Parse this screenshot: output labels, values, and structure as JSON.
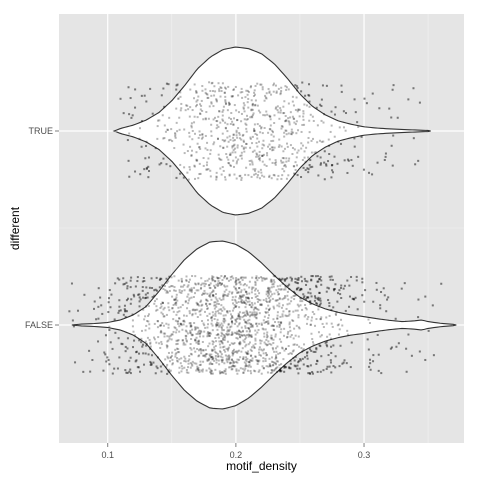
{
  "chart_data": {
    "type": "violin",
    "xlabel": "motif_density",
    "ylabel": "different",
    "xlim": [
      0.062,
      0.378
    ],
    "x_ticks": [
      0.1,
      0.2,
      0.3
    ],
    "x_tick_labels": [
      "0.1",
      "0.2",
      "0.3"
    ],
    "categories": [
      "FALSE",
      "TRUE"
    ],
    "grid": true,
    "legend": "none",
    "colors": {
      "panel": "#e5e5e5",
      "grid_major": "#ffffff",
      "grid_minor": "#f2f2f2",
      "violin_fill": "#ffffff",
      "violin_outline": "#333333",
      "points": "#000000"
    },
    "series": [
      {
        "category": "TRUE",
        "x_range": [
          0.105,
          0.352
        ],
        "jitter_points_range": [
          0.11,
          0.35
        ],
        "point_count_approx": 800,
        "density_profile": [
          [
            0.105,
            0.0
          ],
          [
            0.11,
            0.03
          ],
          [
            0.12,
            0.07
          ],
          [
            0.13,
            0.13
          ],
          [
            0.14,
            0.22
          ],
          [
            0.15,
            0.36
          ],
          [
            0.16,
            0.54
          ],
          [
            0.17,
            0.74
          ],
          [
            0.18,
            0.88
          ],
          [
            0.19,
            0.97
          ],
          [
            0.2,
            1.0
          ],
          [
            0.21,
            0.98
          ],
          [
            0.22,
            0.92
          ],
          [
            0.23,
            0.8
          ],
          [
            0.24,
            0.63
          ],
          [
            0.25,
            0.44
          ],
          [
            0.26,
            0.29
          ],
          [
            0.27,
            0.19
          ],
          [
            0.28,
            0.12
          ],
          [
            0.29,
            0.08
          ],
          [
            0.3,
            0.05
          ],
          [
            0.31,
            0.035
          ],
          [
            0.32,
            0.025
          ],
          [
            0.33,
            0.018
          ],
          [
            0.34,
            0.012
          ],
          [
            0.352,
            0.005
          ]
        ]
      },
      {
        "category": "FALSE",
        "x_range": [
          0.072,
          0.372
        ],
        "jitter_points_range": [
          0.07,
          0.37
        ],
        "point_count_approx": 1800,
        "density_profile": [
          [
            0.072,
            0.0
          ],
          [
            0.08,
            0.012
          ],
          [
            0.09,
            0.018
          ],
          [
            0.1,
            0.03
          ],
          [
            0.11,
            0.06
          ],
          [
            0.12,
            0.12
          ],
          [
            0.13,
            0.22
          ],
          [
            0.14,
            0.4
          ],
          [
            0.15,
            0.6
          ],
          [
            0.16,
            0.78
          ],
          [
            0.17,
            0.91
          ],
          [
            0.18,
            0.99
          ],
          [
            0.19,
            1.0
          ],
          [
            0.2,
            0.96
          ],
          [
            0.21,
            0.87
          ],
          [
            0.22,
            0.74
          ],
          [
            0.23,
            0.59
          ],
          [
            0.24,
            0.45
          ],
          [
            0.25,
            0.33
          ],
          [
            0.26,
            0.25
          ],
          [
            0.27,
            0.19
          ],
          [
            0.28,
            0.15
          ],
          [
            0.29,
            0.12
          ],
          [
            0.3,
            0.1
          ],
          [
            0.31,
            0.075
          ],
          [
            0.32,
            0.055
          ],
          [
            0.33,
            0.04
          ],
          [
            0.34,
            0.05
          ],
          [
            0.345,
            0.06
          ],
          [
            0.35,
            0.04
          ],
          [
            0.36,
            0.02
          ],
          [
            0.372,
            0.005
          ]
        ]
      }
    ]
  }
}
